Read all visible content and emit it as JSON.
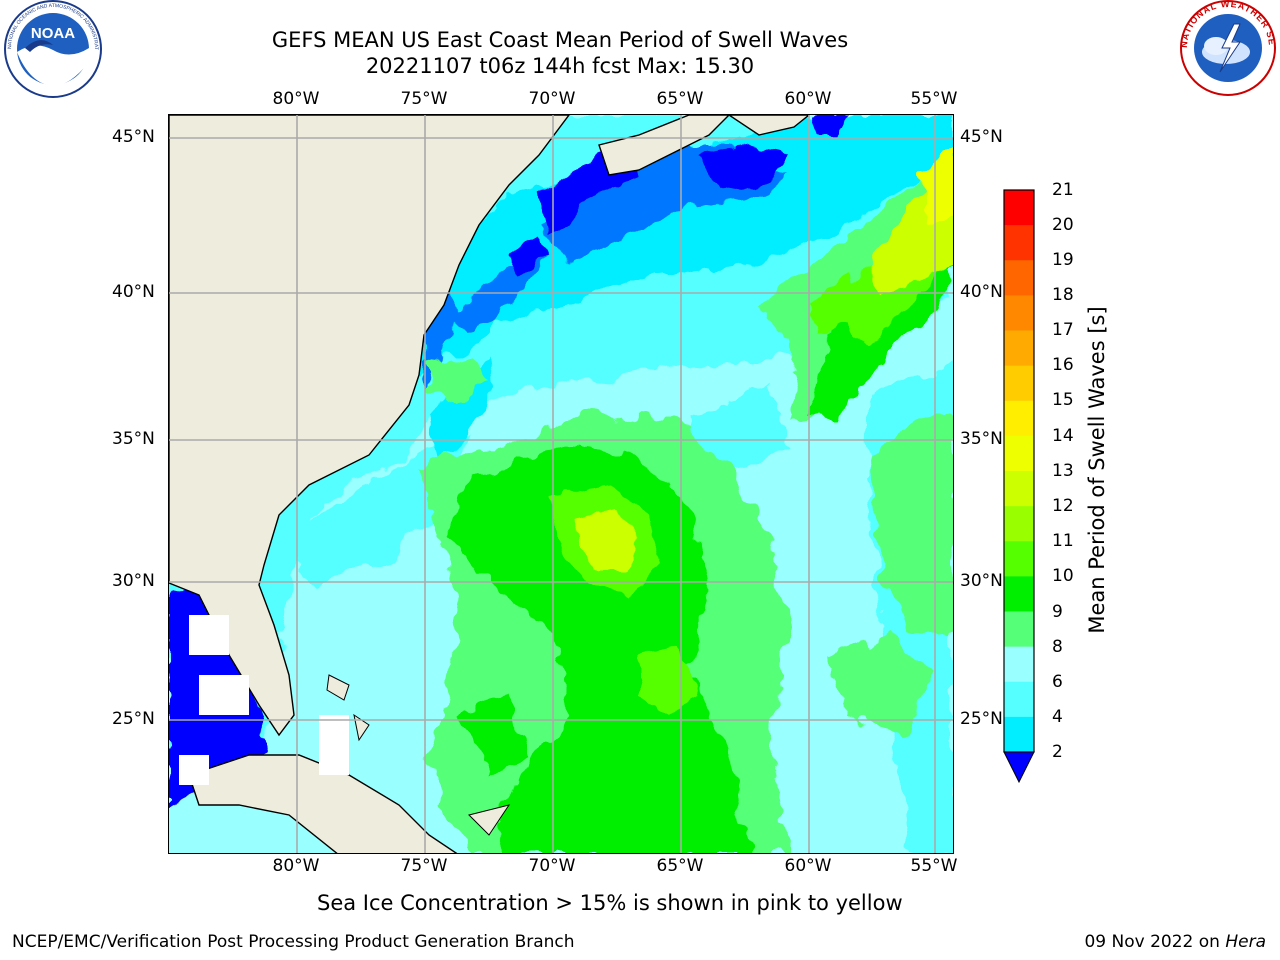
{
  "header": {
    "title_line1": "GEFS MEAN US East Coast Mean Period of Swell Waves",
    "title_line2": "20221107 t06z 144h fcst   Max: 15.30"
  },
  "axes": {
    "lon_labels": [
      "80°W",
      "75°W",
      "70°W",
      "65°W",
      "60°W",
      "55°W"
    ],
    "lat_labels": [
      "45°N",
      "40°N",
      "35°N",
      "30°N",
      "25°N"
    ]
  },
  "colorbar": {
    "title": "Mean Period of Swell Waves [s]",
    "labels": [
      "21",
      "20",
      "19",
      "18",
      "17",
      "16",
      "15",
      "14",
      "13",
      "12",
      "11",
      "10",
      "9",
      "8",
      "6",
      "4",
      "2"
    ],
    "colors": [
      "#ff0000",
      "#ff3300",
      "#ff6600",
      "#ff8800",
      "#ffaa00",
      "#ffcc00",
      "#ffee00",
      "#eeff00",
      "#ccff00",
      "#99ff00",
      "#55ff00",
      "#00ee00",
      "#55ff77",
      "#99ffff",
      "#55ffff",
      "#00eeff",
      "#0077ff"
    ],
    "extend_color": "#0000ff"
  },
  "footer": {
    "note": "Sea Ice Concentration > 15% is shown in pink to yellow",
    "credit": "NCEP/EMC/Verification Post Processing Product Generation Branch",
    "date": "09 Nov 2022 on ",
    "machine": "Hera"
  },
  "logos": {
    "left": "NOAA",
    "left_ring": "NATIONAL OCEANIC AND ATMOSPHERIC ADMINISTRATION · U.S. DEPARTMENT OF COMMERCE",
    "right_ring": "NATIONAL WEATHER SERVICE"
  }
}
